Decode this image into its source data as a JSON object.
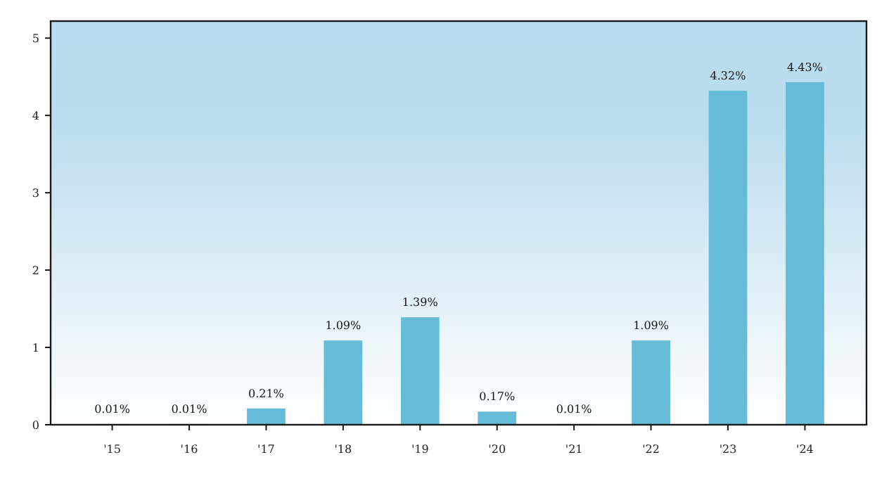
{
  "chart_data": {
    "type": "bar",
    "categories": [
      "'15",
      "'16",
      "'17",
      "'18",
      "'19",
      "'20",
      "'21",
      "'22",
      "'23",
      "'24"
    ],
    "values": [
      0.01,
      0.01,
      0.21,
      1.09,
      1.39,
      0.17,
      0.01,
      1.09,
      4.32,
      4.43
    ],
    "value_labels": [
      "0.01%",
      "0.01%",
      "0.21%",
      "1.09%",
      "1.39%",
      "0.17%",
      "0.01%",
      "1.09%",
      "4.32%",
      "4.43%"
    ],
    "color": "#66bcd8",
    "ylim": [
      0,
      5.22
    ],
    "yticks": [
      0,
      1,
      2,
      3,
      4,
      5
    ],
    "grid": false
  }
}
